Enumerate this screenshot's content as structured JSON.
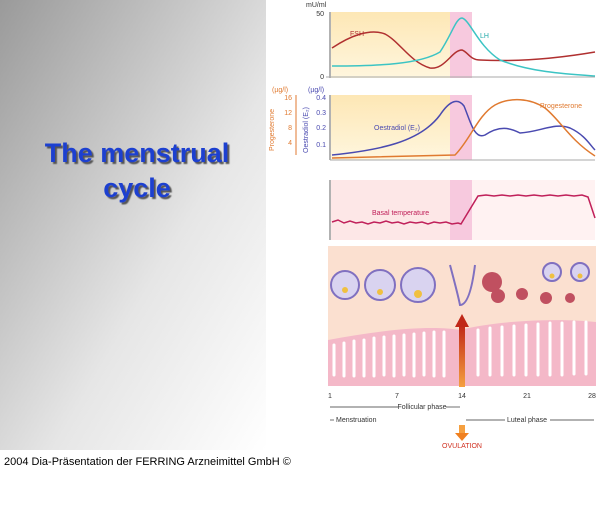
{
  "slide": {
    "title_lines": [
      "The menstrual",
      "cycle"
    ],
    "footer": "2004 Dia-Präsentation der FERRING Arzneimittel GmbH ©",
    "figure": {
      "hormones": {
        "unit": "mU/ml",
        "ticks": [
          50,
          0
        ],
        "fsh": "FSH",
        "lh": "LH"
      },
      "steroids": {
        "left_unit": "(µg/l)",
        "right_unit": "(µg/l)",
        "left_ticks": [
          16,
          12,
          8,
          4
        ],
        "right_ticks": [
          0.4,
          0.3,
          0.2,
          0.1
        ],
        "left_axis_label": "Progesterone",
        "right_axis_label": "Oestradiol (E₂)",
        "oestradiol": "Oestradiol (E₂)",
        "progesterone": "Progesterone"
      },
      "temperature": {
        "label": "Basal temperature"
      },
      "days": [
        1,
        7,
        14,
        21,
        28
      ],
      "follicular": "Follicular phase",
      "luteal": "Luteal phase",
      "menstruation": "Menstruation",
      "ovulation": "OVULATION"
    }
  }
}
